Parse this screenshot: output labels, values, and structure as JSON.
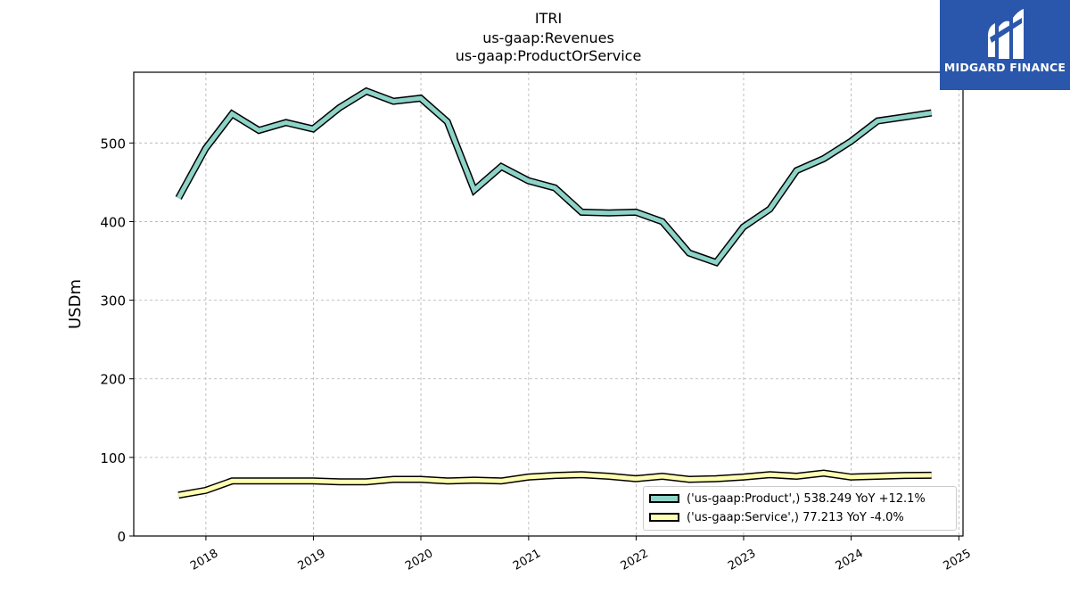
{
  "chart_data": {
    "type": "line",
    "title": "ITRI",
    "subtitle": [
      "us-gaap:Revenues",
      "us-gaap:ProductOrService"
    ],
    "ylabel": "USDm",
    "xlabel": "",
    "ylim": [
      0,
      590
    ],
    "xlim": [
      "2017-05-01",
      "2025-01-15"
    ],
    "y_ticks": [
      "0",
      "100",
      "200",
      "300",
      "400",
      "500"
    ],
    "x_ticks": [
      "2018",
      "2019",
      "2020",
      "2021",
      "2022",
      "2023",
      "2024",
      "2025"
    ],
    "grid": true,
    "legend_position": "lower-right",
    "x": [
      "2017-09-30",
      "2017-12-31",
      "2018-03-31",
      "2018-06-30",
      "2018-09-30",
      "2018-12-31",
      "2019-03-31",
      "2019-06-30",
      "2019-09-30",
      "2019-12-31",
      "2020-03-31",
      "2020-06-30",
      "2020-09-30",
      "2020-12-31",
      "2021-03-31",
      "2021-06-30",
      "2021-09-30",
      "2021-12-31",
      "2022-03-31",
      "2022-06-30",
      "2022-09-30",
      "2022-12-31",
      "2023-03-31",
      "2023-06-30",
      "2023-09-30",
      "2023-12-31",
      "2024-03-31",
      "2024-06-30",
      "2024-09-30"
    ],
    "series": [
      {
        "name": "('us-gaap:Product',) 538.249 YoY +12.1%",
        "color": "#8dd3c7",
        "values": [
          430,
          493,
          537,
          516,
          526,
          518,
          545,
          566,
          553,
          557,
          527,
          440,
          470,
          452,
          443,
          412,
          411,
          412,
          400,
          360,
          348,
          393,
          416,
          465,
          480,
          502,
          528,
          533,
          538.249
        ]
      },
      {
        "name": "('us-gaap:Service',) 77.213 YoY -4.0%",
        "color": "#ffffb3",
        "values": [
          52,
          58,
          70,
          70,
          70,
          70,
          69,
          69,
          72,
          72,
          70,
          71,
          70,
          75,
          77,
          78,
          76,
          73,
          76,
          72,
          73,
          75,
          78,
          76,
          80,
          75,
          76,
          77,
          77.213
        ]
      }
    ]
  },
  "logo": {
    "text": "MIDGARD FINANCE",
    "color": "#2a57ab"
  }
}
